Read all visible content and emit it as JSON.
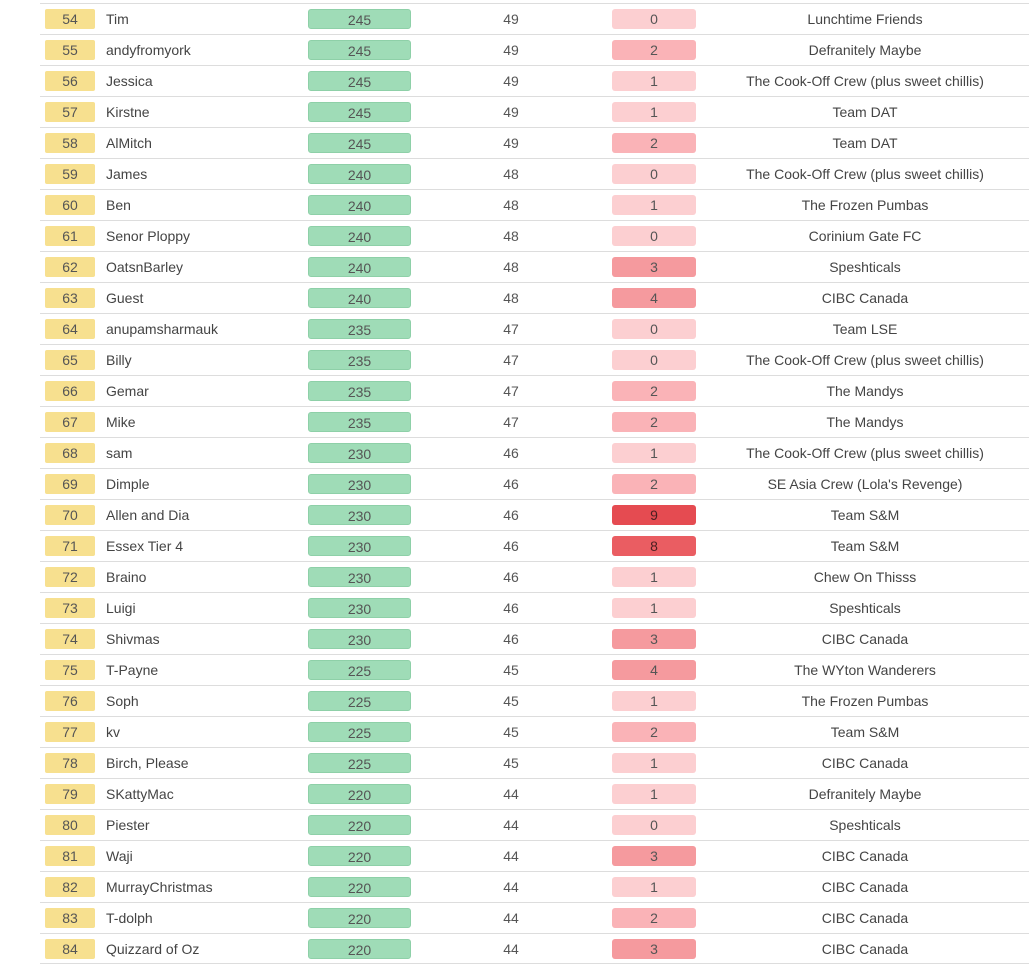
{
  "leaderboard": {
    "rows": [
      {
        "rank": "54",
        "name": "Tim",
        "points": "245",
        "correct": "49",
        "exact": "0",
        "team": "Lunchtime Friends"
      },
      {
        "rank": "55",
        "name": "andyfromyork",
        "points": "245",
        "correct": "49",
        "exact": "2",
        "team": "Defranitely Maybe"
      },
      {
        "rank": "56",
        "name": "Jessica",
        "points": "245",
        "correct": "49",
        "exact": "1",
        "team": "The Cook-Off Crew (plus sweet chillis)"
      },
      {
        "rank": "57",
        "name": "Kirstne",
        "points": "245",
        "correct": "49",
        "exact": "1",
        "team": "Team DAT"
      },
      {
        "rank": "58",
        "name": "AlMitch",
        "points": "245",
        "correct": "49",
        "exact": "2",
        "team": "Team DAT"
      },
      {
        "rank": "59",
        "name": "James",
        "points": "240",
        "correct": "48",
        "exact": "0",
        "team": "The Cook-Off Crew (plus sweet chillis)"
      },
      {
        "rank": "60",
        "name": "Ben",
        "points": "240",
        "correct": "48",
        "exact": "1",
        "team": "The Frozen Pumbas"
      },
      {
        "rank": "61",
        "name": "Senor Ploppy",
        "points": "240",
        "correct": "48",
        "exact": "0",
        "team": "Corinium Gate FC"
      },
      {
        "rank": "62",
        "name": "OatsnBarley",
        "points": "240",
        "correct": "48",
        "exact": "3",
        "team": "Speshticals"
      },
      {
        "rank": "63",
        "name": "Guest",
        "points": "240",
        "correct": "48",
        "exact": "4",
        "team": "CIBC Canada"
      },
      {
        "rank": "64",
        "name": "anupamsharmauk",
        "points": "235",
        "correct": "47",
        "exact": "0",
        "team": "Team LSE"
      },
      {
        "rank": "65",
        "name": "Billy",
        "points": "235",
        "correct": "47",
        "exact": "0",
        "team": "The Cook-Off Crew (plus sweet chillis)"
      },
      {
        "rank": "66",
        "name": "Gemar",
        "points": "235",
        "correct": "47",
        "exact": "2",
        "team": "The Mandys"
      },
      {
        "rank": "67",
        "name": "Mike",
        "points": "235",
        "correct": "47",
        "exact": "2",
        "team": "The Mandys"
      },
      {
        "rank": "68",
        "name": "sam",
        "points": "230",
        "correct": "46",
        "exact": "1",
        "team": "The Cook-Off Crew (plus sweet chillis)"
      },
      {
        "rank": "69",
        "name": "Dimple",
        "points": "230",
        "correct": "46",
        "exact": "2",
        "team": "SE Asia Crew (Lola's Revenge)"
      },
      {
        "rank": "70",
        "name": "Allen and Dia",
        "points": "230",
        "correct": "46",
        "exact": "9",
        "team": "Team S&M"
      },
      {
        "rank": "71",
        "name": "Essex Tier 4",
        "points": "230",
        "correct": "46",
        "exact": "8",
        "team": "Team S&M"
      },
      {
        "rank": "72",
        "name": "Braino",
        "points": "230",
        "correct": "46",
        "exact": "1",
        "team": "Chew On Thisss"
      },
      {
        "rank": "73",
        "name": "Luigi",
        "points": "230",
        "correct": "46",
        "exact": "1",
        "team": "Speshticals"
      },
      {
        "rank": "74",
        "name": "Shivmas",
        "points": "230",
        "correct": "46",
        "exact": "3",
        "team": "CIBC Canada"
      },
      {
        "rank": "75",
        "name": "T-Payne",
        "points": "225",
        "correct": "45",
        "exact": "4",
        "team": "The WYton Wanderers"
      },
      {
        "rank": "76",
        "name": "Soph",
        "points": "225",
        "correct": "45",
        "exact": "1",
        "team": "The Frozen Pumbas"
      },
      {
        "rank": "77",
        "name": "kv",
        "points": "225",
        "correct": "45",
        "exact": "2",
        "team": "Team S&M"
      },
      {
        "rank": "78",
        "name": "Birch, Please",
        "points": "225",
        "correct": "45",
        "exact": "1",
        "team": "CIBC Canada"
      },
      {
        "rank": "79",
        "name": "SKattyMac",
        "points": "220",
        "correct": "44",
        "exact": "1",
        "team": "Defranitely Maybe"
      },
      {
        "rank": "80",
        "name": "Piester",
        "points": "220",
        "correct": "44",
        "exact": "0",
        "team": "Speshticals"
      },
      {
        "rank": "81",
        "name": "Waji",
        "points": "220",
        "correct": "44",
        "exact": "3",
        "team": "CIBC Canada"
      },
      {
        "rank": "82",
        "name": "MurrayChristmas",
        "points": "220",
        "correct": "44",
        "exact": "1",
        "team": "CIBC Canada"
      },
      {
        "rank": "83",
        "name": "T-dolph",
        "points": "220",
        "correct": "44",
        "exact": "2",
        "team": "CIBC Canada"
      },
      {
        "rank": "84",
        "name": "Quizzard of Oz",
        "points": "220",
        "correct": "44",
        "exact": "3",
        "team": "CIBC Canada"
      }
    ]
  }
}
